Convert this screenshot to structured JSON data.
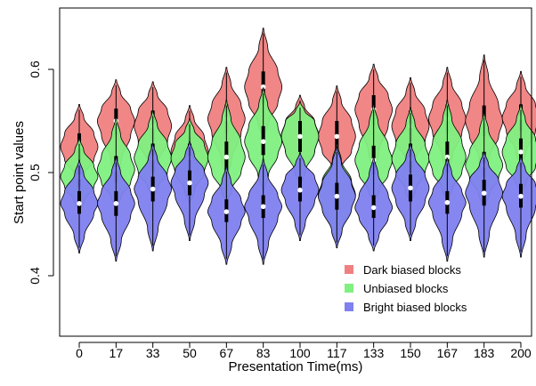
{
  "chart_data": {
    "type": "violin",
    "title": "",
    "xlabel": "Presentation Time(ms)",
    "ylabel": "Start point values",
    "ylim": [
      0.38,
      0.65
    ],
    "yticks": [
      0.4,
      0.5,
      0.6
    ],
    "ytick_labels": [
      "0.4",
      "0.5",
      "0.6"
    ],
    "categories": [
      "0",
      "17",
      "33",
      "50",
      "67",
      "83",
      "100",
      "117",
      "133",
      "150",
      "167",
      "183",
      "200"
    ],
    "legend_position": "bottom-right",
    "series": [
      {
        "name": "Dark biased blocks",
        "color": "#f08080",
        "medians": [
          0.525,
          0.55,
          0.545,
          0.52,
          0.552,
          0.583,
          0.536,
          0.535,
          0.561,
          0.545,
          0.552,
          0.55,
          0.553
        ],
        "q1": [
          0.512,
          0.536,
          0.53,
          0.505,
          0.538,
          0.567,
          0.52,
          0.52,
          0.546,
          0.53,
          0.538,
          0.535,
          0.54
        ],
        "q3": [
          0.538,
          0.562,
          0.56,
          0.535,
          0.566,
          0.598,
          0.55,
          0.55,
          0.575,
          0.56,
          0.566,
          0.565,
          0.566
        ],
        "min": [
          0.488,
          0.494,
          0.494,
          0.475,
          0.493,
          0.533,
          0.494,
          0.495,
          0.5,
          0.5,
          0.5,
          0.5,
          0.505
        ],
        "max": [
          0.566,
          0.59,
          0.588,
          0.565,
          0.602,
          0.64,
          0.575,
          0.584,
          0.605,
          0.592,
          0.602,
          0.614,
          0.598
        ]
      },
      {
        "name": "Unbiased blocks",
        "color": "#80f080",
        "medians": [
          0.496,
          0.503,
          0.514,
          0.514,
          0.515,
          0.53,
          0.535,
          0.478,
          0.512,
          0.513,
          0.515,
          0.507,
          0.52
        ],
        "q1": [
          0.486,
          0.49,
          0.5,
          0.5,
          0.5,
          0.517,
          0.52,
          0.465,
          0.498,
          0.5,
          0.5,
          0.495,
          0.505
        ],
        "q3": [
          0.507,
          0.516,
          0.528,
          0.528,
          0.53,
          0.545,
          0.55,
          0.492,
          0.526,
          0.528,
          0.53,
          0.52,
          0.533
        ],
        "min": [
          0.462,
          0.466,
          0.475,
          0.47,
          0.47,
          0.482,
          0.486,
          0.43,
          0.47,
          0.47,
          0.472,
          0.466,
          0.48
        ],
        "max": [
          0.533,
          0.553,
          0.56,
          0.552,
          0.57,
          0.582,
          0.568,
          0.528,
          0.566,
          0.563,
          0.57,
          0.558,
          0.566
        ]
      },
      {
        "name": "Bright biased blocks",
        "color": "#8080f0",
        "medians": [
          0.47,
          0.47,
          0.484,
          0.49,
          0.462,
          0.467,
          0.483,
          0.477,
          0.466,
          0.485,
          0.471,
          0.48,
          0.477
        ],
        "q1": [
          0.46,
          0.458,
          0.472,
          0.478,
          0.452,
          0.456,
          0.472,
          0.464,
          0.456,
          0.472,
          0.46,
          0.468,
          0.466
        ],
        "q3": [
          0.482,
          0.482,
          0.496,
          0.502,
          0.474,
          0.478,
          0.496,
          0.49,
          0.478,
          0.498,
          0.482,
          0.493,
          0.489
        ],
        "min": [
          0.422,
          0.414,
          0.424,
          0.434,
          0.411,
          0.411,
          0.434,
          0.427,
          0.424,
          0.434,
          0.414,
          0.418,
          0.418
        ],
        "max": [
          0.512,
          0.515,
          0.528,
          0.53,
          0.506,
          0.513,
          0.519,
          0.525,
          0.515,
          0.528,
          0.514,
          0.52,
          0.515
        ]
      }
    ]
  }
}
